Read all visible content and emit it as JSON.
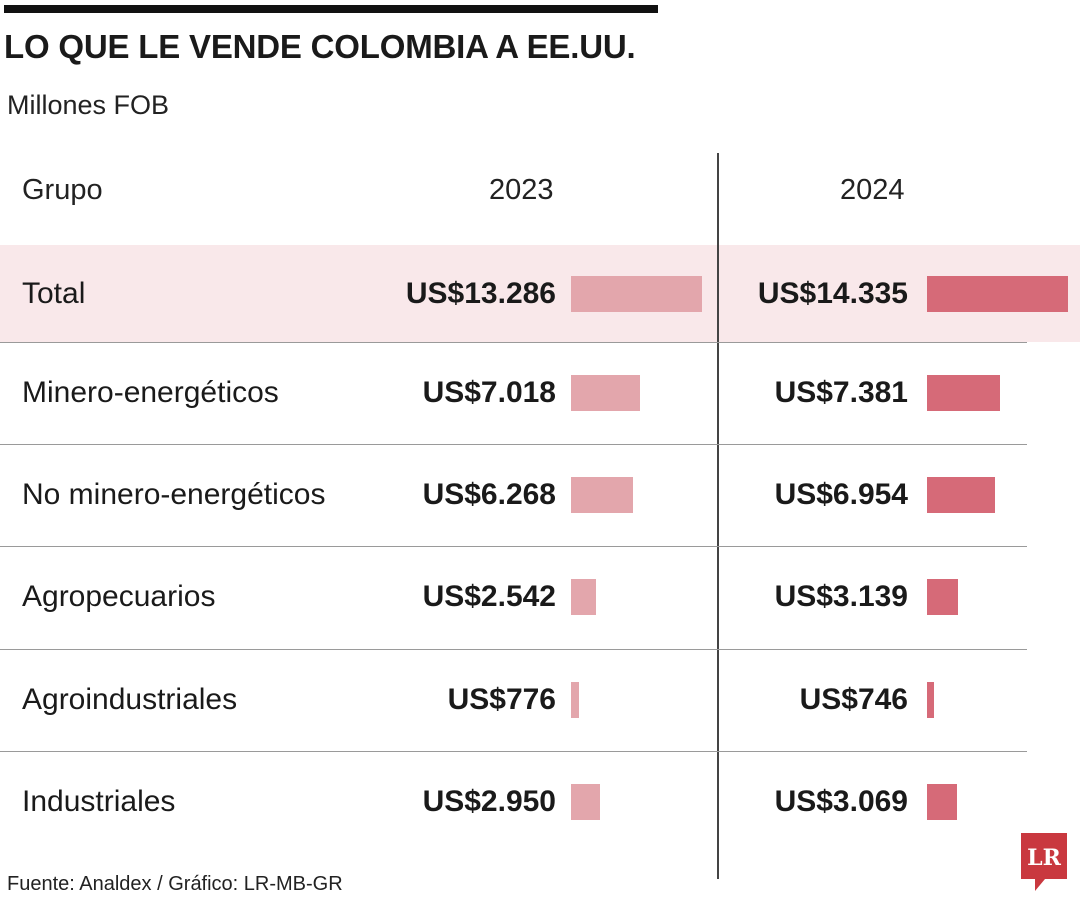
{
  "title": "LO QUE LE VENDE COLOMBIA A EE.UU.",
  "subtitle": "Millones FOB",
  "header": {
    "group": "Grupo",
    "year_2023": "2023",
    "year_2024": "2024"
  },
  "source": "Fuente:  Analdex / Gráfico: LR-MB-GR",
  "logo_text": "LR",
  "colors": {
    "bar_2023": "#e3a6ac",
    "bar_2024": "#d66a78",
    "total_row_bg": "#f9e8ea",
    "logo": "#c9383f"
  },
  "rows": [
    {
      "label": "Total",
      "v2023": "US$13.286",
      "v2024": "US$14.335"
    },
    {
      "label": "Minero-energéticos",
      "v2023": "US$7.018",
      "v2024": "US$7.381"
    },
    {
      "label": "No minero-energéticos",
      "v2023": "US$6.268",
      "v2024": "US$6.954"
    },
    {
      "label": "Agropecuarios",
      "v2023": "US$2.542",
      "v2024": "US$3.139"
    },
    {
      "label": "Agroindustriales",
      "v2023": "US$776",
      "v2024": "US$746"
    },
    {
      "label": "Industriales",
      "v2023": "US$2.950",
      "v2024": "US$3.069"
    }
  ],
  "chart_data": {
    "type": "bar",
    "title": "LO QUE LE VENDE COLOMBIA A EE.UU.",
    "subtitle": "Millones FOB",
    "categories": [
      "Total",
      "Minero-energéticos",
      "No minero-energéticos",
      "Agropecuarios",
      "Agroindustriales",
      "Industriales"
    ],
    "series": [
      {
        "name": "2023",
        "values": [
          13286,
          7018,
          6268,
          2542,
          776,
          2950
        ]
      },
      {
        "name": "2024",
        "values": [
          14335,
          7381,
          6954,
          3139,
          746,
          3069
        ]
      }
    ],
    "unit": "Millones FOB",
    "grid": false
  }
}
